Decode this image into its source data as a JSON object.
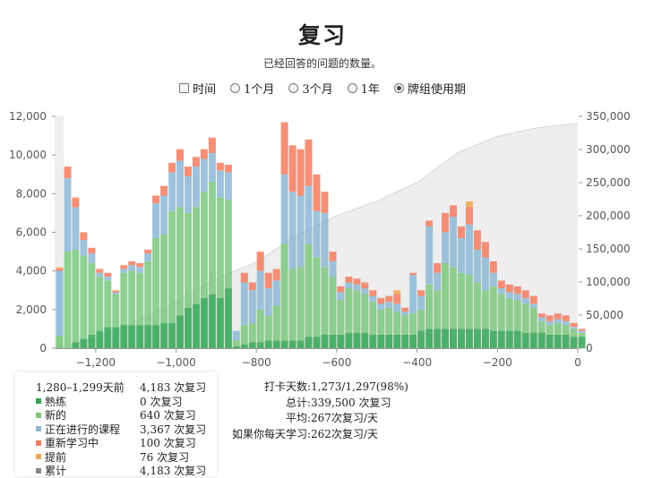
{
  "title": "复习",
  "subtitle": "已经回答的问题的数量。",
  "ranges": [
    {
      "label": "时间",
      "kind": "checkbox",
      "checked": false
    },
    {
      "label": "1个月",
      "kind": "radio",
      "checked": false
    },
    {
      "label": "3个月",
      "kind": "radio",
      "checked": false
    },
    {
      "label": "1年",
      "kind": "radio",
      "checked": false
    },
    {
      "label": "牌组使用期",
      "kind": "radio",
      "checked": true
    }
  ],
  "colors": {
    "mature": "#31a354",
    "young": "#7bc77b",
    "learning": "#8cb8d6",
    "relearn": "#f47b5e",
    "early": "#f3a24d",
    "cumulative": "#888888"
  },
  "chart_data": {
    "type": "bar",
    "stacked": true,
    "bin_width": 20,
    "x_ticks": [
      -1200,
      -1000,
      -800,
      -600,
      -400,
      -200,
      0
    ],
    "x_tick_labels": [
      "−1,200",
      "−1,000",
      "−800",
      "−600",
      "−400",
      "−200",
      "0"
    ],
    "xlim": [
      -1300,
      0
    ],
    "ylim": [
      0,
      12000
    ],
    "y_ticks": [
      0,
      2000,
      4000,
      6000,
      8000,
      10000,
      12000
    ],
    "y_tick_labels": [
      "0",
      "2,000",
      "4,000",
      "6,000",
      "8,000",
      "10,000",
      "12,000"
    ],
    "y2lim": [
      0,
      350000
    ],
    "y2_ticks": [
      0,
      50000,
      100000,
      150000,
      200000,
      250000,
      300000,
      350000
    ],
    "y2_tick_labels": [
      "0",
      "50,000",
      "100,000",
      "150,000",
      "200,000",
      "250,000",
      "300,000",
      "350,000"
    ],
    "series_order": [
      "mature",
      "young",
      "learning",
      "relearn",
      "early"
    ],
    "bins": [
      {
        "x": -1300,
        "mature": 0,
        "young": 640,
        "learning": 3367,
        "relearn": 100,
        "early": 76
      },
      {
        "x": -1280,
        "mature": 0,
        "young": 5000,
        "learning": 3800,
        "relearn": 600,
        "early": 0
      },
      {
        "x": -1260,
        "mature": 300,
        "young": 4800,
        "learning": 2200,
        "relearn": 500,
        "early": 0
      },
      {
        "x": -1240,
        "mature": 500,
        "young": 4300,
        "learning": 800,
        "relearn": 400,
        "early": 0
      },
      {
        "x": -1220,
        "mature": 700,
        "young": 3700,
        "learning": 500,
        "relearn": 300,
        "early": 0
      },
      {
        "x": -1200,
        "mature": 900,
        "young": 2800,
        "learning": 200,
        "relearn": 200,
        "early": 0
      },
      {
        "x": -1180,
        "mature": 1100,
        "young": 2400,
        "learning": 200,
        "relearn": 200,
        "early": 0
      },
      {
        "x": -1160,
        "mature": 1100,
        "young": 1700,
        "learning": 100,
        "relearn": 100,
        "early": 0
      },
      {
        "x": -1140,
        "mature": 1200,
        "young": 2700,
        "learning": 200,
        "relearn": 200,
        "early": 0
      },
      {
        "x": -1120,
        "mature": 1200,
        "young": 2800,
        "learning": 300,
        "relearn": 200,
        "early": 0
      },
      {
        "x": -1100,
        "mature": 1200,
        "young": 2700,
        "learning": 300,
        "relearn": 200,
        "early": 0
      },
      {
        "x": -1080,
        "mature": 1200,
        "young": 3300,
        "learning": 400,
        "relearn": 200,
        "early": 0
      },
      {
        "x": -1060,
        "mature": 1200,
        "young": 4500,
        "learning": 1800,
        "relearn": 400,
        "early": 0
      },
      {
        "x": -1040,
        "mature": 1300,
        "young": 4600,
        "learning": 2000,
        "relearn": 500,
        "early": 0
      },
      {
        "x": -1020,
        "mature": 1300,
        "young": 5800,
        "learning": 2000,
        "relearn": 500,
        "early": 0
      },
      {
        "x": -1000,
        "mature": 1700,
        "young": 5600,
        "learning": 2400,
        "relearn": 600,
        "early": 0
      },
      {
        "x": -980,
        "mature": 2100,
        "young": 4900,
        "learning": 1900,
        "relearn": 500,
        "early": 0
      },
      {
        "x": -960,
        "mature": 2300,
        "young": 5000,
        "learning": 2100,
        "relearn": 500,
        "early": 0
      },
      {
        "x": -940,
        "mature": 2600,
        "young": 5500,
        "learning": 1700,
        "relearn": 500,
        "early": 0
      },
      {
        "x": -920,
        "mature": 2800,
        "young": 5800,
        "learning": 1500,
        "relearn": 800,
        "early": 0
      },
      {
        "x": -900,
        "mature": 2600,
        "young": 5200,
        "learning": 1400,
        "relearn": 400,
        "early": 0
      },
      {
        "x": -880,
        "mature": 3100,
        "young": 4600,
        "learning": 1400,
        "relearn": 400,
        "early": 0
      },
      {
        "x": -860,
        "mature": 100,
        "young": 300,
        "learning": 500,
        "relearn": 0,
        "early": 0
      },
      {
        "x": -840,
        "mature": 200,
        "young": 1000,
        "learning": 2200,
        "relearn": 500,
        "early": 0
      },
      {
        "x": -820,
        "mature": 300,
        "young": 1000,
        "learning": 1700,
        "relearn": 400,
        "early": 0
      },
      {
        "x": -800,
        "mature": 300,
        "young": 1700,
        "learning": 2000,
        "relearn": 1000,
        "early": 0
      },
      {
        "x": -780,
        "mature": 400,
        "young": 1300,
        "learning": 1400,
        "relearn": 800,
        "early": 0
      },
      {
        "x": -760,
        "mature": 400,
        "young": 1800,
        "learning": 1300,
        "relearn": 600,
        "early": 0
      },
      {
        "x": -740,
        "mature": 400,
        "young": 5000,
        "learning": 3600,
        "relearn": 2700,
        "early": 0
      },
      {
        "x": -720,
        "mature": 400,
        "young": 3700,
        "learning": 4000,
        "relearn": 2400,
        "early": 0
      },
      {
        "x": -700,
        "mature": 400,
        "young": 3800,
        "learning": 3700,
        "relearn": 2400,
        "early": 0
      },
      {
        "x": -680,
        "mature": 600,
        "young": 4800,
        "learning": 3000,
        "relearn": 2400,
        "early": 0
      },
      {
        "x": -660,
        "mature": 600,
        "young": 4100,
        "learning": 2400,
        "relearn": 1900,
        "early": 0
      },
      {
        "x": -640,
        "mature": 700,
        "young": 3500,
        "learning": 2800,
        "relearn": 1100,
        "early": 0
      },
      {
        "x": -620,
        "mature": 700,
        "young": 3000,
        "learning": 800,
        "relearn": 500,
        "early": 0
      },
      {
        "x": -600,
        "mature": 700,
        "young": 1800,
        "learning": 400,
        "relearn": 300,
        "early": 0
      },
      {
        "x": -580,
        "mature": 800,
        "young": 2300,
        "learning": 300,
        "relearn": 300,
        "early": 0
      },
      {
        "x": -560,
        "mature": 800,
        "young": 2200,
        "learning": 300,
        "relearn": 300,
        "early": 0
      },
      {
        "x": -540,
        "mature": 800,
        "young": 2000,
        "learning": 300,
        "relearn": 300,
        "early": 0
      },
      {
        "x": -520,
        "mature": 700,
        "young": 1700,
        "learning": 300,
        "relearn": 300,
        "early": 0
      },
      {
        "x": -500,
        "mature": 700,
        "young": 1300,
        "learning": 300,
        "relearn": 300,
        "early": 0
      },
      {
        "x": -480,
        "mature": 700,
        "young": 1400,
        "learning": 300,
        "relearn": 300,
        "early": 0
      },
      {
        "x": -460,
        "mature": 700,
        "young": 1200,
        "learning": 400,
        "relearn": 500,
        "early": 200
      },
      {
        "x": -440,
        "mature": 700,
        "young": 1000,
        "learning": 200,
        "relearn": 200,
        "early": 0
      },
      {
        "x": -420,
        "mature": 700,
        "young": 1100,
        "learning": 2000,
        "relearn": 100,
        "early": 0
      },
      {
        "x": -400,
        "mature": 900,
        "young": 1100,
        "learning": 700,
        "relearn": 300,
        "early": 0
      },
      {
        "x": -380,
        "mature": 1000,
        "young": 2300,
        "learning": 3000,
        "relearn": 300,
        "early": 0
      },
      {
        "x": -360,
        "mature": 1000,
        "young": 2000,
        "learning": 900,
        "relearn": 500,
        "early": 0
      },
      {
        "x": -340,
        "mature": 1000,
        "young": 3400,
        "learning": 1600,
        "relearn": 1000,
        "early": 0
      },
      {
        "x": -320,
        "mature": 1000,
        "young": 3200,
        "learning": 2600,
        "relearn": 600,
        "early": 0
      },
      {
        "x": -300,
        "mature": 1000,
        "young": 2900,
        "learning": 1800,
        "relearn": 600,
        "early": 0
      },
      {
        "x": -280,
        "mature": 1000,
        "young": 2800,
        "learning": 2600,
        "relearn": 900,
        "early": 300
      },
      {
        "x": -260,
        "mature": 1000,
        "young": 2400,
        "learning": 1700,
        "relearn": 1000,
        "early": 0
      },
      {
        "x": -240,
        "mature": 1000,
        "young": 2000,
        "learning": 1700,
        "relearn": 800,
        "early": 0
      },
      {
        "x": -220,
        "mature": 900,
        "young": 2300,
        "learning": 700,
        "relearn": 600,
        "early": 0
      },
      {
        "x": -200,
        "mature": 900,
        "young": 1900,
        "learning": 300,
        "relearn": 400,
        "early": 0
      },
      {
        "x": -180,
        "mature": 900,
        "young": 1700,
        "learning": 300,
        "relearn": 400,
        "early": 0
      },
      {
        "x": -160,
        "mature": 900,
        "young": 1600,
        "learning": 300,
        "relearn": 400,
        "early": 0
      },
      {
        "x": -140,
        "mature": 800,
        "young": 1500,
        "learning": 300,
        "relearn": 400,
        "early": 0
      },
      {
        "x": -120,
        "mature": 800,
        "young": 1300,
        "learning": 200,
        "relearn": 400,
        "early": 0
      },
      {
        "x": -100,
        "mature": 800,
        "young": 600,
        "learning": 200,
        "relearn": 200,
        "early": 0
      },
      {
        "x": -80,
        "mature": 700,
        "young": 500,
        "learning": 200,
        "relearn": 300,
        "early": 0
      },
      {
        "x": -60,
        "mature": 700,
        "young": 600,
        "learning": 200,
        "relearn": 300,
        "early": 0
      },
      {
        "x": -40,
        "mature": 700,
        "young": 500,
        "learning": 200,
        "relearn": 300,
        "early": 0
      },
      {
        "x": -20,
        "mature": 600,
        "young": 400,
        "learning": 100,
        "relearn": 200,
        "early": 0
      },
      {
        "x": 0,
        "mature": 600,
        "young": 200,
        "learning": 100,
        "relearn": 100,
        "early": 0
      }
    ],
    "cumulative": [
      {
        "x": -1300,
        "y": 0
      },
      {
        "x": -1200,
        "y": 15000
      },
      {
        "x": -1100,
        "y": 40000
      },
      {
        "x": -1000,
        "y": 70000
      },
      {
        "x": -900,
        "y": 105000
      },
      {
        "x": -800,
        "y": 130000
      },
      {
        "x": -700,
        "y": 170000
      },
      {
        "x": -600,
        "y": 200000
      },
      {
        "x": -500,
        "y": 222000
      },
      {
        "x": -400,
        "y": 250000
      },
      {
        "x": -300,
        "y": 295000
      },
      {
        "x": -200,
        "y": 320000
      },
      {
        "x": -100,
        "y": 333000
      },
      {
        "x": 0,
        "y": 339500
      }
    ]
  },
  "tooltip": {
    "header_label": "1,280–1,299天前",
    "header_value": "4,183 次复习",
    "rows": [
      {
        "key": "mature",
        "label": "熟练",
        "value": "0 次复习"
      },
      {
        "key": "young",
        "label": "新的",
        "value": "640 次复习"
      },
      {
        "key": "learning",
        "label": "正在进行的课程",
        "value": "3,367 次复习"
      },
      {
        "key": "relearn",
        "label": "重新学习中",
        "value": "100 次复习"
      },
      {
        "key": "early",
        "label": "提前",
        "value": "76 次复习"
      },
      {
        "key": "cumulative",
        "label": "累计",
        "value": "4,183 次复习"
      }
    ]
  },
  "stats": [
    {
      "label": "打卡天数:",
      "value": "1,273/1,297(98%)"
    },
    {
      "label": "总计:",
      "value": "339,500 次复习"
    },
    {
      "label": "平均:",
      "value": "267次复习/天"
    },
    {
      "label": "如果你每天学习:",
      "value": "262次复习/天"
    }
  ]
}
